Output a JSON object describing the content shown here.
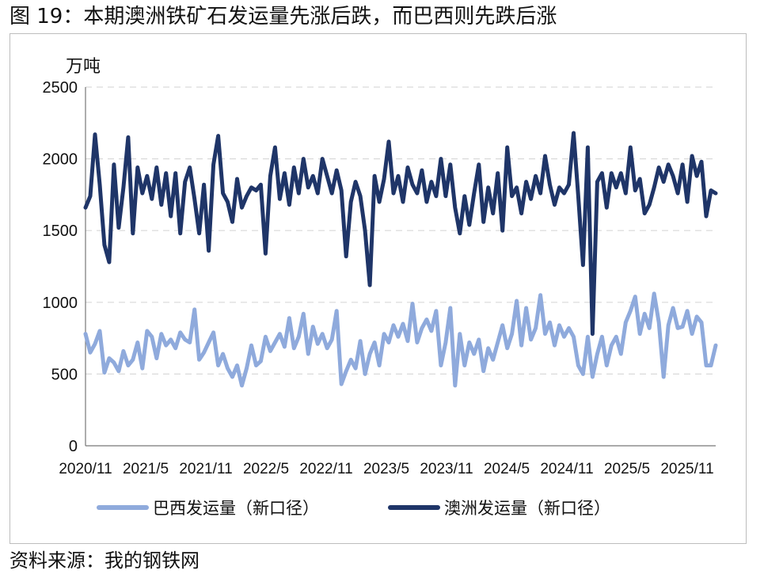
{
  "figure_title": "图 19：本期澳洲铁矿石发运量先涨后跌，而巴西则先跌后涨",
  "source": "资料来源：我的钢铁网",
  "chart_data": {
    "type": "line",
    "title": "",
    "ylabel": "万吨",
    "xlabel": "",
    "ylim": [
      0,
      2500
    ],
    "yticks": [
      0,
      500,
      1000,
      1500,
      2000,
      2500
    ],
    "xtick_labels": [
      "2020/11",
      "2021/5",
      "2021/11",
      "2022/5",
      "2022/11",
      "2023/5",
      "2023/11",
      "2024/5",
      "2024/11",
      "2025/5",
      "2025/11"
    ],
    "x_range": [
      "2020-11-06",
      "2025-12-12"
    ],
    "grid": "horizontal dashed",
    "legend_position": "bottom",
    "series": [
      {
        "name": "巴西发运量（新口径）",
        "color": "#8faadc",
        "points": [
          [
            "2020-11-06",
            780
          ],
          [
            "2020-11-20",
            650
          ],
          [
            "2020-12-04",
            710
          ],
          [
            "2020-12-18",
            800
          ],
          [
            "2021-01-01",
            510
          ],
          [
            "2021-01-15",
            610
          ],
          [
            "2021-01-29",
            580
          ],
          [
            "2021-02-12",
            520
          ],
          [
            "2021-02-26",
            660
          ],
          [
            "2021-03-12",
            560
          ],
          [
            "2021-03-26",
            600
          ],
          [
            "2021-04-09",
            720
          ],
          [
            "2021-04-23",
            540
          ],
          [
            "2021-05-07",
            800
          ],
          [
            "2021-05-21",
            760
          ],
          [
            "2021-06-04",
            610
          ],
          [
            "2021-06-18",
            780
          ],
          [
            "2021-07-02",
            700
          ],
          [
            "2021-07-16",
            740
          ],
          [
            "2021-07-30",
            680
          ],
          [
            "2021-08-13",
            790
          ],
          [
            "2021-08-27",
            740
          ],
          [
            "2021-09-10",
            720
          ],
          [
            "2021-09-24",
            950
          ],
          [
            "2021-10-08",
            600
          ],
          [
            "2021-10-22",
            650
          ],
          [
            "2021-11-05",
            720
          ],
          [
            "2021-11-19",
            790
          ],
          [
            "2021-12-03",
            560
          ],
          [
            "2021-12-17",
            640
          ],
          [
            "2021-12-31",
            540
          ],
          [
            "2022-01-14",
            480
          ],
          [
            "2022-01-28",
            560
          ],
          [
            "2022-02-11",
            420
          ],
          [
            "2022-02-25",
            540
          ],
          [
            "2022-03-11",
            700
          ],
          [
            "2022-03-25",
            560
          ],
          [
            "2022-04-08",
            590
          ],
          [
            "2022-04-22",
            760
          ],
          [
            "2022-05-06",
            660
          ],
          [
            "2022-05-20",
            720
          ],
          [
            "2022-06-03",
            780
          ],
          [
            "2022-06-17",
            690
          ],
          [
            "2022-07-01",
            890
          ],
          [
            "2022-07-15",
            680
          ],
          [
            "2022-07-29",
            760
          ],
          [
            "2022-08-12",
            920
          ],
          [
            "2022-08-26",
            640
          ],
          [
            "2022-09-09",
            830
          ],
          [
            "2022-09-23",
            710
          ],
          [
            "2022-10-07",
            780
          ],
          [
            "2022-10-21",
            680
          ],
          [
            "2022-11-04",
            740
          ],
          [
            "2022-11-18",
            940
          ],
          [
            "2022-12-02",
            430
          ],
          [
            "2022-12-16",
            520
          ],
          [
            "2022-12-30",
            600
          ],
          [
            "2023-01-13",
            540
          ],
          [
            "2023-01-27",
            730
          ],
          [
            "2023-02-10",
            500
          ],
          [
            "2023-02-24",
            640
          ],
          [
            "2023-03-10",
            720
          ],
          [
            "2023-03-24",
            560
          ],
          [
            "2023-04-07",
            780
          ],
          [
            "2023-04-21",
            720
          ],
          [
            "2023-05-05",
            840
          ],
          [
            "2023-05-19",
            760
          ],
          [
            "2023-06-02",
            850
          ],
          [
            "2023-06-16",
            730
          ],
          [
            "2023-06-30",
            990
          ],
          [
            "2023-07-14",
            720
          ],
          [
            "2023-07-28",
            820
          ],
          [
            "2023-08-11",
            880
          ],
          [
            "2023-08-25",
            800
          ],
          [
            "2023-09-08",
            940
          ],
          [
            "2023-09-22",
            560
          ],
          [
            "2023-10-06",
            720
          ],
          [
            "2023-10-20",
            960
          ],
          [
            "2023-11-03",
            420
          ],
          [
            "2023-11-17",
            780
          ],
          [
            "2023-12-01",
            560
          ],
          [
            "2023-12-15",
            720
          ],
          [
            "2023-12-29",
            640
          ],
          [
            "2024-01-12",
            740
          ],
          [
            "2024-01-26",
            520
          ],
          [
            "2024-02-09",
            680
          ],
          [
            "2024-02-23",
            600
          ],
          [
            "2024-03-08",
            720
          ],
          [
            "2024-03-22",
            840
          ],
          [
            "2024-04-05",
            680
          ],
          [
            "2024-04-19",
            780
          ],
          [
            "2024-05-03",
            1010
          ],
          [
            "2024-05-17",
            700
          ],
          [
            "2024-05-31",
            960
          ],
          [
            "2024-06-14",
            740
          ],
          [
            "2024-06-28",
            820
          ],
          [
            "2024-07-12",
            1050
          ],
          [
            "2024-07-26",
            780
          ],
          [
            "2024-08-09",
            860
          ],
          [
            "2024-08-23",
            700
          ],
          [
            "2024-09-06",
            840
          ],
          [
            "2024-09-20",
            760
          ],
          [
            "2024-10-04",
            820
          ],
          [
            "2024-10-18",
            760
          ],
          [
            "2024-11-01",
            560
          ],
          [
            "2024-11-15",
            500
          ],
          [
            "2024-11-29",
            760
          ],
          [
            "2024-12-13",
            480
          ],
          [
            "2024-12-27",
            640
          ],
          [
            "2025-01-10",
            760
          ],
          [
            "2025-01-24",
            560
          ],
          [
            "2025-02-07",
            700
          ],
          [
            "2025-02-21",
            760
          ],
          [
            "2025-03-07",
            640
          ],
          [
            "2025-03-21",
            860
          ],
          [
            "2025-04-04",
            940
          ],
          [
            "2025-04-18",
            1040
          ],
          [
            "2025-05-02",
            780
          ],
          [
            "2025-05-16",
            920
          ],
          [
            "2025-05-30",
            820
          ],
          [
            "2025-06-13",
            1060
          ],
          [
            "2025-06-27",
            860
          ],
          [
            "2025-07-11",
            480
          ],
          [
            "2025-07-25",
            840
          ],
          [
            "2025-08-08",
            960
          ],
          [
            "2025-08-22",
            820
          ],
          [
            "2025-09-05",
            830
          ],
          [
            "2025-09-19",
            940
          ],
          [
            "2025-10-03",
            780
          ],
          [
            "2025-10-17",
            900
          ],
          [
            "2025-10-31",
            860
          ],
          [
            "2025-11-14",
            560
          ],
          [
            "2025-11-28",
            560
          ],
          [
            "2025-12-12",
            700
          ]
        ]
      },
      {
        "name": "澳洲发运量（新口径）",
        "color": "#1f3568",
        "points": [
          [
            "2020-11-06",
            1660
          ],
          [
            "2020-11-20",
            1740
          ],
          [
            "2020-12-04",
            2170
          ],
          [
            "2020-12-18",
            1820
          ],
          [
            "2021-01-01",
            1400
          ],
          [
            "2021-01-15",
            1280
          ],
          [
            "2021-01-29",
            1960
          ],
          [
            "2021-02-12",
            1520
          ],
          [
            "2021-02-26",
            1800
          ],
          [
            "2021-03-12",
            2150
          ],
          [
            "2021-03-26",
            1480
          ],
          [
            "2021-04-09",
            1940
          ],
          [
            "2021-04-23",
            1760
          ],
          [
            "2021-05-07",
            1880
          ],
          [
            "2021-05-21",
            1720
          ],
          [
            "2021-06-04",
            1940
          ],
          [
            "2021-06-18",
            1680
          ],
          [
            "2021-07-02",
            1900
          ],
          [
            "2021-07-16",
            1600
          ],
          [
            "2021-07-30",
            1900
          ],
          [
            "2021-08-13",
            1480
          ],
          [
            "2021-08-27",
            1840
          ],
          [
            "2021-09-10",
            1940
          ],
          [
            "2021-09-24",
            1720
          ],
          [
            "2021-10-08",
            1480
          ],
          [
            "2021-10-22",
            1820
          ],
          [
            "2021-11-05",
            1360
          ],
          [
            "2021-11-19",
            1960
          ],
          [
            "2021-12-03",
            2160
          ],
          [
            "2021-12-17",
            1760
          ],
          [
            "2021-12-31",
            1700
          ],
          [
            "2022-01-14",
            1560
          ],
          [
            "2022-01-28",
            1860
          ],
          [
            "2022-02-11",
            1660
          ],
          [
            "2022-02-25",
            1740
          ],
          [
            "2022-03-11",
            1800
          ],
          [
            "2022-03-25",
            1780
          ],
          [
            "2022-04-08",
            1820
          ],
          [
            "2022-04-22",
            1340
          ],
          [
            "2022-05-06",
            1880
          ],
          [
            "2022-05-20",
            2080
          ],
          [
            "2022-06-03",
            1720
          ],
          [
            "2022-06-17",
            1900
          ],
          [
            "2022-07-01",
            1680
          ],
          [
            "2022-07-15",
            1940
          ],
          [
            "2022-07-29",
            1760
          ],
          [
            "2022-08-12",
            2000
          ],
          [
            "2022-08-26",
            1800
          ],
          [
            "2022-09-09",
            1880
          ],
          [
            "2022-09-23",
            1760
          ],
          [
            "2022-10-07",
            2000
          ],
          [
            "2022-10-21",
            1880
          ],
          [
            "2022-11-04",
            1760
          ],
          [
            "2022-11-18",
            1920
          ],
          [
            "2022-12-02",
            1780
          ],
          [
            "2022-12-16",
            1320
          ],
          [
            "2022-12-30",
            1700
          ],
          [
            "2023-01-13",
            1840
          ],
          [
            "2023-01-27",
            1740
          ],
          [
            "2023-02-10",
            1500
          ],
          [
            "2023-02-24",
            1120
          ],
          [
            "2023-03-10",
            1880
          ],
          [
            "2023-03-24",
            1700
          ],
          [
            "2023-04-07",
            1860
          ],
          [
            "2023-04-21",
            2120
          ],
          [
            "2023-05-05",
            1760
          ],
          [
            "2023-05-19",
            1880
          ],
          [
            "2023-06-02",
            1700
          ],
          [
            "2023-06-16",
            1940
          ],
          [
            "2023-06-30",
            1820
          ],
          [
            "2023-07-14",
            1760
          ],
          [
            "2023-07-28",
            1920
          ],
          [
            "2023-08-11",
            1700
          ],
          [
            "2023-08-25",
            1840
          ],
          [
            "2023-09-08",
            1740
          ],
          [
            "2023-09-22",
            2000
          ],
          [
            "2023-10-06",
            1740
          ],
          [
            "2023-10-20",
            1960
          ],
          [
            "2023-11-03",
            1660
          ],
          [
            "2023-11-17",
            1480
          ],
          [
            "2023-12-01",
            1740
          ],
          [
            "2023-12-15",
            1540
          ],
          [
            "2023-12-29",
            1760
          ],
          [
            "2024-01-12",
            1960
          ],
          [
            "2024-01-26",
            1560
          ],
          [
            "2024-02-09",
            1800
          ],
          [
            "2024-02-23",
            1620
          ],
          [
            "2024-03-08",
            1900
          ],
          [
            "2024-03-22",
            1500
          ],
          [
            "2024-04-05",
            2080
          ],
          [
            "2024-04-19",
            1740
          ],
          [
            "2024-05-03",
            1800
          ],
          [
            "2024-05-17",
            1620
          ],
          [
            "2024-05-31",
            1840
          ],
          [
            "2024-06-14",
            1720
          ],
          [
            "2024-06-28",
            1880
          ],
          [
            "2024-07-12",
            1760
          ],
          [
            "2024-07-26",
            2020
          ],
          [
            "2024-08-09",
            1820
          ],
          [
            "2024-08-23",
            1680
          ],
          [
            "2024-09-06",
            1800
          ],
          [
            "2024-09-20",
            1760
          ],
          [
            "2024-10-04",
            1820
          ],
          [
            "2024-10-18",
            2180
          ],
          [
            "2024-11-01",
            1740
          ],
          [
            "2024-11-15",
            1260
          ],
          [
            "2024-11-29",
            2080
          ],
          [
            "2024-12-13",
            780
          ],
          [
            "2024-12-27",
            1840
          ],
          [
            "2025-01-10",
            1900
          ],
          [
            "2025-01-24",
            1660
          ],
          [
            "2025-02-07",
            1900
          ],
          [
            "2025-02-21",
            1800
          ],
          [
            "2025-03-07",
            1900
          ],
          [
            "2025-03-21",
            1760
          ],
          [
            "2025-04-04",
            2080
          ],
          [
            "2025-04-18",
            1780
          ],
          [
            "2025-05-02",
            1860
          ],
          [
            "2025-05-16",
            1620
          ],
          [
            "2025-05-30",
            1680
          ],
          [
            "2025-06-13",
            1800
          ],
          [
            "2025-06-27",
            1940
          ],
          [
            "2025-07-11",
            1840
          ],
          [
            "2025-07-25",
            1960
          ],
          [
            "2025-08-08",
            1880
          ],
          [
            "2025-08-22",
            1760
          ],
          [
            "2025-09-05",
            1960
          ],
          [
            "2025-09-19",
            1700
          ],
          [
            "2025-10-03",
            2020
          ],
          [
            "2025-10-17",
            1880
          ],
          [
            "2025-10-31",
            1980
          ],
          [
            "2025-11-14",
            1600
          ],
          [
            "2025-11-28",
            1780
          ],
          [
            "2025-12-12",
            1760
          ]
        ]
      }
    ]
  }
}
